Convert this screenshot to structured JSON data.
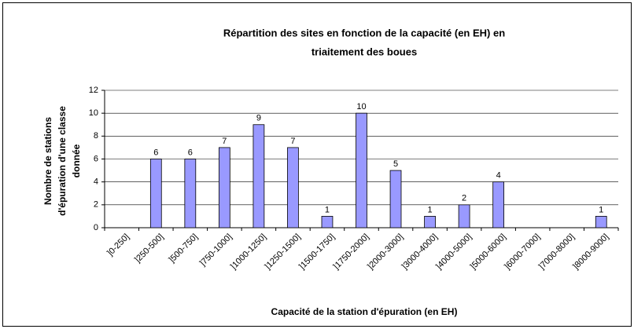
{
  "chart_data": {
    "type": "bar",
    "title": [
      "Répartition des sites en fonction de la capacité (en EH) en",
      "triaitement des boues"
    ],
    "ylabel": [
      "Nombre de stations",
      "d'épuration d'une classe",
      "donnée"
    ],
    "xlabel": "Capacité de la station d'épuration (en EH)",
    "categories": [
      "]0-250]",
      "]250-500]",
      "]500-750]",
      "]750-1000]",
      "]1000-1250]",
      "]1250-1500]",
      "]1500-1750]",
      "]1750-2000]",
      "]2000-3000]",
      "]3000-4000]",
      "]4000-5000]",
      "]5000-6000]",
      "]6000-7000]",
      "]7000-8000]",
      "]8000-9000]"
    ],
    "values": [
      0,
      6,
      6,
      7,
      9,
      7,
      1,
      10,
      5,
      1,
      2,
      4,
      0,
      0,
      1
    ],
    "color": "#9999ff",
    "ylim": [
      0,
      12
    ],
    "yticks": [
      0,
      2,
      4,
      6,
      8,
      10,
      12
    ],
    "grid": true
  }
}
